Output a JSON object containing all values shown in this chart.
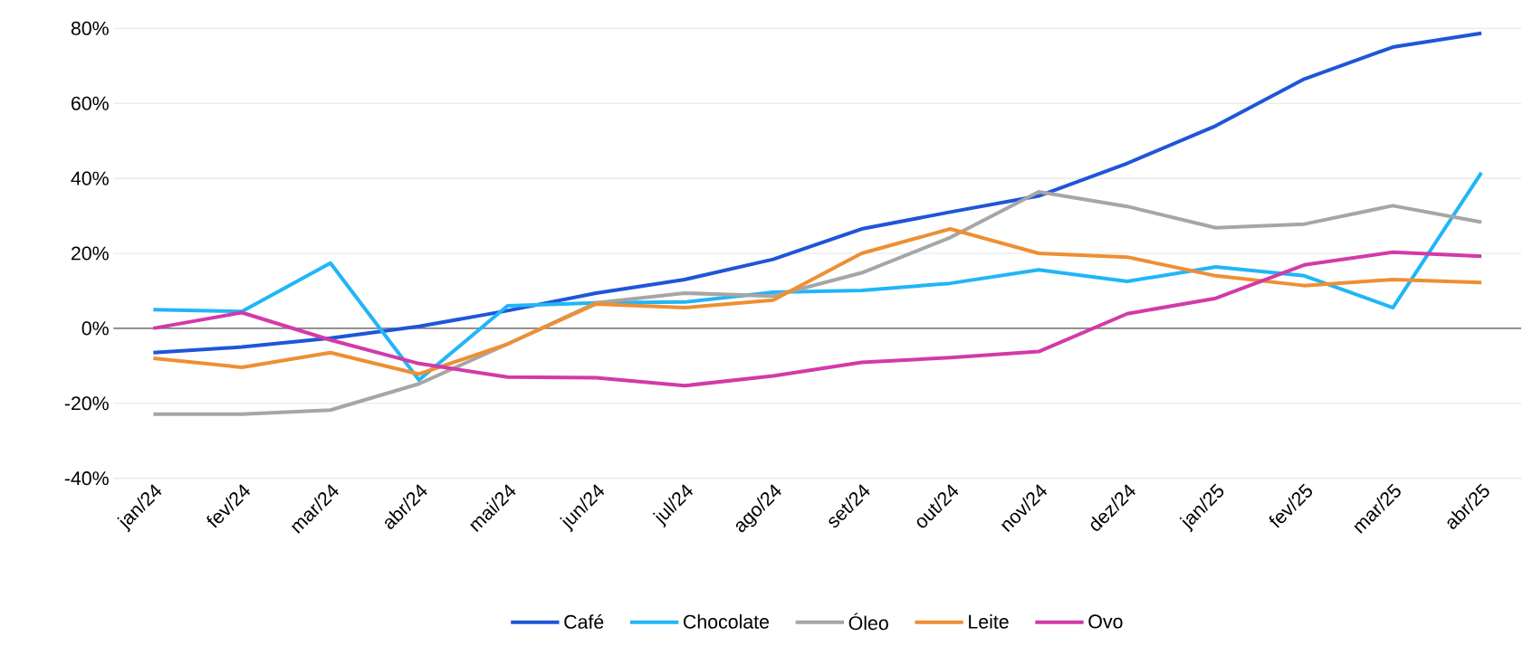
{
  "chart_data": {
    "type": "line",
    "categories": [
      "jan/24",
      "fev/24",
      "mar/24",
      "abr/24",
      "mai/24",
      "jun/24",
      "jul/24",
      "ago/24",
      "set/24",
      "out/24",
      "nov/24",
      "dez/24",
      "jan/25",
      "fev/25",
      "mar/25",
      "abr/25"
    ],
    "series": [
      {
        "name": "Café",
        "color": "#1f56d8",
        "values": [
          -6.5,
          -5,
          -2.6,
          0.5,
          4.7,
          9.4,
          13,
          18.4,
          26.5,
          31,
          35.3,
          44,
          54,
          66.5,
          75,
          78.7
        ]
      },
      {
        "name": "Chocolate",
        "color": "#20b6f7",
        "values": [
          5,
          4.5,
          17.4,
          -13.8,
          6,
          6.8,
          7,
          9.6,
          10.1,
          12,
          15.6,
          12.5,
          16.4,
          14,
          5.5,
          41.5
        ]
      },
      {
        "name": "Óleo",
        "color": "#a6a6a6",
        "values": [
          -22.9,
          -22.9,
          -21.8,
          -14.8,
          -4.2,
          6.8,
          9.4,
          8.6,
          14.8,
          24.2,
          36.4,
          32.5,
          26.8,
          27.8,
          32.7,
          28.3
        ]
      },
      {
        "name": "Leite",
        "color": "#ee8f33",
        "values": [
          -8,
          -10.4,
          -6.5,
          -12.2,
          -4.2,
          6.5,
          5.5,
          7.5,
          20,
          26.5,
          20,
          19,
          14,
          11.4,
          13,
          12.2
        ]
      },
      {
        "name": "Ovo",
        "color": "#d23aa8",
        "values": [
          0,
          4.2,
          -3.1,
          -9.4,
          -13,
          -13.2,
          -15.3,
          -12.7,
          -9.1,
          -7.8,
          -6.2,
          3.9,
          8,
          16.9,
          20.3,
          19.2
        ]
      }
    ],
    "ylim": [
      -40,
      80
    ],
    "yticks": [
      {
        "value": -40,
        "label": "-40%"
      },
      {
        "value": -20,
        "label": "-20%"
      },
      {
        "value": 0,
        "label": "0%"
      },
      {
        "value": 20,
        "label": "20%"
      },
      {
        "value": 40,
        "label": "40%"
      },
      {
        "value": 60,
        "label": "60%"
      },
      {
        "value": 80,
        "label": "80%"
      }
    ],
    "ref_lines": [
      {
        "axis": "y",
        "value": 0,
        "color": "#595959"
      }
    ],
    "grid": "y",
    "legend": "bottom",
    "marker": "none",
    "line_style": "solid"
  }
}
